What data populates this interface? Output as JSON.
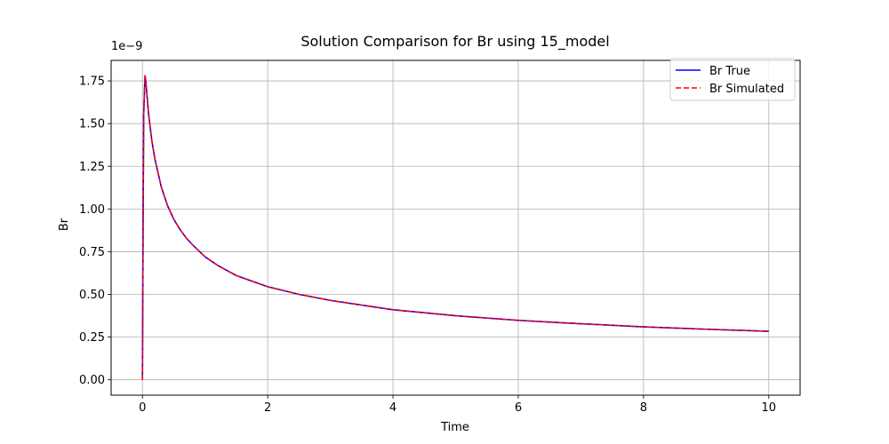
{
  "chart_data": {
    "type": "line",
    "title": "Solution Comparison for Br using 15_model",
    "xlabel": "Time",
    "ylabel": "Br",
    "y_offset_label": "1e−9",
    "xlim": [
      -0.5,
      10.5
    ],
    "ylim": [
      -0.09,
      1.87
    ],
    "xticks": [
      0,
      2,
      4,
      6,
      8,
      10
    ],
    "xtick_labels": [
      "0",
      "2",
      "4",
      "6",
      "8",
      "10"
    ],
    "yticks": [
      0.0,
      0.25,
      0.5,
      0.75,
      1.0,
      1.25,
      1.5,
      1.75
    ],
    "ytick_labels": [
      "0.00",
      "0.25",
      "0.50",
      "0.75",
      "1.00",
      "1.25",
      "1.50",
      "1.75"
    ],
    "grid": true,
    "legend_position": "top-right",
    "x": [
      0,
      0.01,
      0.02,
      0.04,
      0.05,
      0.1,
      0.15,
      0.2,
      0.3,
      0.4,
      0.5,
      0.6,
      0.7,
      0.8,
      1.0,
      1.2,
      1.5,
      2.0,
      2.5,
      3.0,
      4.0,
      5.0,
      6.0,
      7.0,
      8.0,
      9.0,
      10.0
    ],
    "series": [
      {
        "name": "Br True",
        "color": "#0000ff",
        "style": "solid",
        "values": [
          0.0,
          0.9,
          1.55,
          1.78,
          1.76,
          1.55,
          1.4,
          1.29,
          1.13,
          1.02,
          0.94,
          0.88,
          0.83,
          0.79,
          0.72,
          0.67,
          0.61,
          0.545,
          0.5,
          0.465,
          0.41,
          0.375,
          0.348,
          0.328,
          0.31,
          0.296,
          0.284
        ]
      },
      {
        "name": "Br Simulated",
        "color": "#ff0000",
        "style": "dashed",
        "values": [
          0.0,
          0.9,
          1.55,
          1.78,
          1.76,
          1.55,
          1.4,
          1.29,
          1.13,
          1.02,
          0.94,
          0.88,
          0.83,
          0.79,
          0.72,
          0.67,
          0.61,
          0.545,
          0.5,
          0.465,
          0.41,
          0.375,
          0.348,
          0.328,
          0.31,
          0.296,
          0.284
        ]
      }
    ]
  }
}
